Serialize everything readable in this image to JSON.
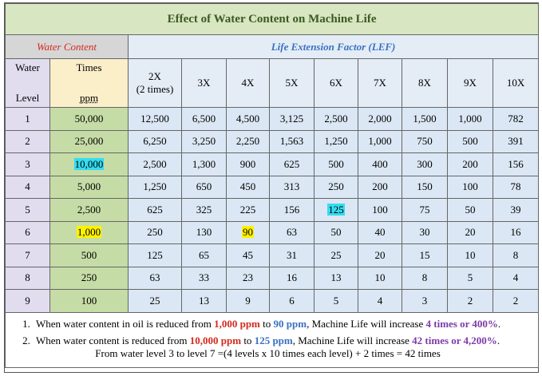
{
  "title": "Effect of Water Content on Machine Life",
  "headers": {
    "water_content": "Water Content",
    "lef": "Life Extension Factor (LEF)",
    "water_level_1": "Water",
    "water_level_2": "Level",
    "times": "Times",
    "ppm": "ppm",
    "factors": [
      "2X",
      "3X",
      "4X",
      "5X",
      "6X",
      "7X",
      "8X",
      "9X",
      "10X"
    ],
    "factor_2x_sub": "(2 times)"
  },
  "rows": [
    {
      "level": "1",
      "ppm": "50,000",
      "values": [
        "12,500",
        "6,500",
        "4,500",
        "3,125",
        "2,500",
        "2,000",
        "1,500",
        "1,000",
        "782"
      ]
    },
    {
      "level": "2",
      "ppm": "25,000",
      "values": [
        "6,250",
        "3,250",
        "2,250",
        "1,563",
        "1,250",
        "1,000",
        "750",
        "500",
        "391"
      ]
    },
    {
      "level": "3",
      "ppm": "10,000",
      "values": [
        "2,500",
        "1,300",
        "900",
        "625",
        "500",
        "400",
        "300",
        "200",
        "156"
      ]
    },
    {
      "level": "4",
      "ppm": "5,000",
      "values": [
        "1,250",
        "650",
        "450",
        "313",
        "250",
        "200",
        "150",
        "100",
        "78"
      ]
    },
    {
      "level": "5",
      "ppm": "2,500",
      "values": [
        "625",
        "325",
        "225",
        "156",
        "125",
        "100",
        "75",
        "50",
        "39"
      ]
    },
    {
      "level": "6",
      "ppm": "1,000",
      "values": [
        "250",
        "130",
        "90",
        "63",
        "50",
        "40",
        "30",
        "20",
        "16"
      ]
    },
    {
      "level": "7",
      "ppm": "500",
      "values": [
        "125",
        "65",
        "45",
        "31",
        "25",
        "20",
        "15",
        "10",
        "8"
      ]
    },
    {
      "level": "8",
      "ppm": "250",
      "values": [
        "63",
        "33",
        "23",
        "16",
        "13",
        "10",
        "8",
        "5",
        "4"
      ]
    },
    {
      "level": "9",
      "ppm": "100",
      "values": [
        "25",
        "13",
        "9",
        "6",
        "5",
        "4",
        "3",
        "2",
        "2"
      ]
    }
  ],
  "highlights": [
    {
      "row": 2,
      "col": "ppm",
      "color": "#35dcef"
    },
    {
      "row": 5,
      "col": "ppm",
      "color": "#fff200"
    },
    {
      "row": 4,
      "col": 4,
      "color": "#35dcef"
    },
    {
      "row": 5,
      "col": 2,
      "color": "#fff200"
    }
  ],
  "notes": [
    {
      "num": "1.",
      "parts": [
        {
          "t": "When water content in oil is reduced from ",
          "c": ""
        },
        {
          "t": "1,000 ppm",
          "c": "red"
        },
        {
          "t": " to ",
          "c": ""
        },
        {
          "t": "90 ppm",
          "c": "blue"
        },
        {
          "t": ", Machine Life will increase ",
          "c": ""
        },
        {
          "t": "4 times or 400%",
          "c": "purple"
        },
        {
          "t": ".",
          "c": ""
        }
      ]
    },
    {
      "num": "2.",
      "parts": [
        {
          "t": "When water content is reduced from ",
          "c": ""
        },
        {
          "t": "10,000 ppm",
          "c": "red"
        },
        {
          "t": " to ",
          "c": ""
        },
        {
          "t": "125 ppm",
          "c": "blue"
        },
        {
          "t": ", Machine Life will increase ",
          "c": ""
        },
        {
          "t": "42 times or 4,200%",
          "c": "purple"
        },
        {
          "t": ".",
          "c": ""
        }
      ],
      "line2": "From water level 3 to level 7 =(4 levels x 10 times each level) + 2 times = 42 times"
    }
  ],
  "colors": {
    "title_bg": "#d8e6c2",
    "red": "#d42a1d",
    "blue": "#3a72c0",
    "purple": "#7d3aa8",
    "cyan_highlight": "#35dcef",
    "yellow_highlight": "#fff200"
  }
}
